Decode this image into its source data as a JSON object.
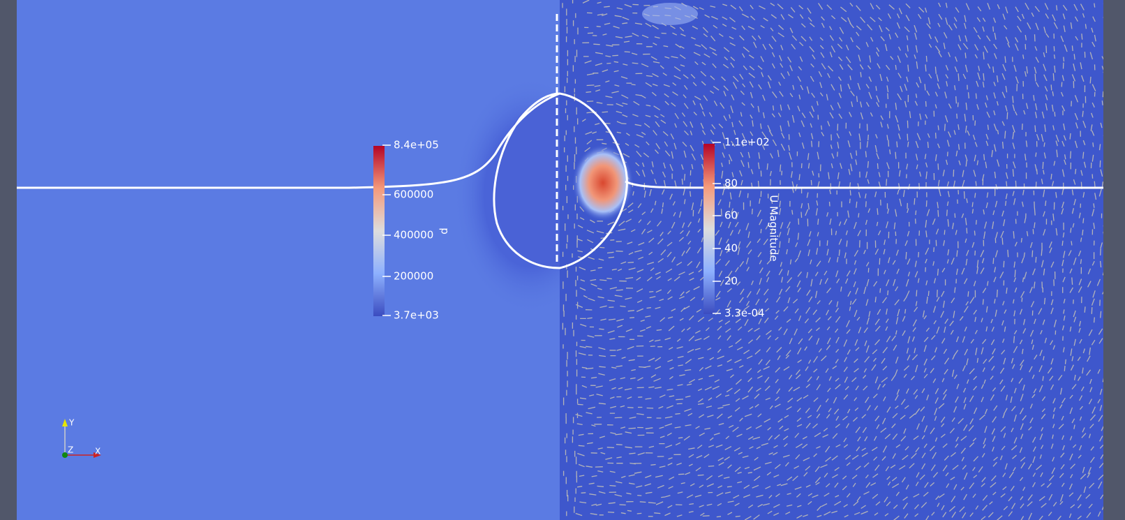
{
  "colorbars": [
    {
      "title": "p",
      "labels": [
        "8.4e+05",
        "600000",
        "400000",
        "200000",
        "3.7e+03"
      ]
    },
    {
      "title": "U Magnitude",
      "labels": [
        "1.1e+02",
        "80",
        "60",
        "40",
        "20",
        "3.3e-04"
      ]
    }
  ],
  "axes": {
    "x": "X",
    "y": "Y",
    "z": "Z"
  }
}
